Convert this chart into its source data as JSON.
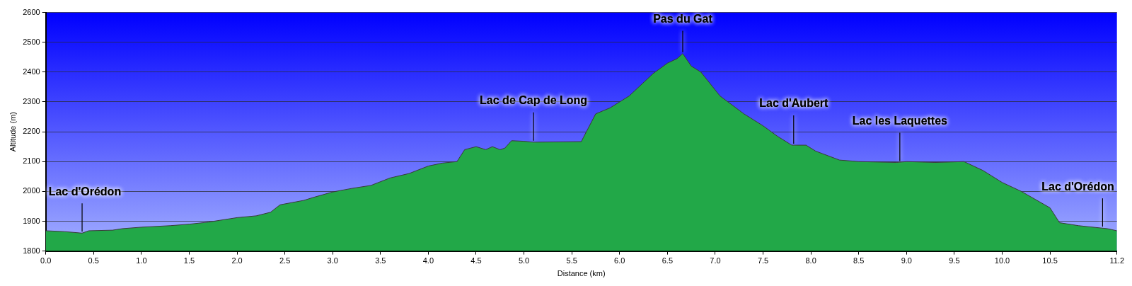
{
  "chart_data": {
    "type": "area",
    "xlabel": "Distance (km)",
    "ylabel": "Altitude (m)",
    "x": [
      0,
      0.2,
      0.38,
      0.45,
      0.7,
      0.8,
      1.0,
      1.3,
      1.5,
      1.7,
      2.0,
      2.2,
      2.35,
      2.45,
      2.7,
      2.8,
      3.0,
      3.2,
      3.4,
      3.6,
      3.8,
      4.0,
      4.15,
      4.3,
      4.38,
      4.5,
      4.6,
      4.67,
      4.75,
      4.8,
      4.87,
      5.0,
      5.1,
      5.6,
      5.62,
      5.75,
      5.9,
      6.1,
      6.2,
      6.35,
      6.5,
      6.6,
      6.66,
      6.75,
      6.85,
      7.05,
      7.3,
      7.5,
      7.65,
      7.8,
      7.95,
      8.05,
      8.3,
      8.5,
      8.9,
      9.0,
      9.3,
      9.6,
      9.8,
      10.0,
      10.2,
      10.5,
      10.6,
      10.8,
      11.1,
      11.2
    ],
    "series": [
      {
        "color": "#22a848",
        "values": [
          1868,
          1865,
          1860,
          1868,
          1870,
          1875,
          1880,
          1885,
          1890,
          1897,
          1912,
          1918,
          1930,
          1955,
          1970,
          1980,
          1998,
          2010,
          2020,
          2045,
          2060,
          2085,
          2095,
          2100,
          2140,
          2150,
          2140,
          2150,
          2140,
          2145,
          2170,
          2168,
          2165,
          2167,
          2180,
          2260,
          2280,
          2320,
          2350,
          2395,
          2430,
          2445,
          2462,
          2420,
          2400,
          2320,
          2260,
          2220,
          2185,
          2155,
          2155,
          2135,
          2105,
          2100,
          2097,
          2100,
          2097,
          2100,
          2070,
          2030,
          2000,
          1945,
          1895,
          1885,
          1875,
          1868
        ]
      }
    ],
    "xlim": [
      0,
      11.2
    ],
    "xticks": [
      {
        "value": 0,
        "label": "0.0"
      },
      0.5,
      {
        "value": 1,
        "label": "1.0"
      },
      1.5,
      {
        "value": 2,
        "label": "2.0"
      },
      2.5,
      {
        "value": 3,
        "label": "3.0"
      },
      3.5,
      {
        "value": 4,
        "label": "4.0"
      },
      4.5,
      {
        "value": 5,
        "label": "5.0"
      },
      5.5,
      {
        "value": 6,
        "label": "6.0"
      },
      6.5,
      {
        "value": 7,
        "label": "7.0"
      },
      7.5,
      {
        "value": 8,
        "label": "8.0"
      },
      8.5,
      {
        "value": 9,
        "label": "9.0"
      },
      9.5,
      {
        "value": 10,
        "label": "10.0"
      },
      10.5,
      11.2
    ],
    "ylim": [
      1800,
      2600
    ],
    "yticks": [
      1800,
      1900,
      2000,
      2100,
      2200,
      2300,
      2400,
      2500,
      2600
    ],
    "grid": "y",
    "legend": false,
    "annotations": [
      {
        "text": "Lac d'Orédon",
        "x": 0.38,
        "y": 1860
      },
      {
        "text": "Lac de Cap de Long",
        "x": 5.1,
        "y": 2165
      },
      {
        "text": "Pas du Gat",
        "x": 6.66,
        "y": 2462
      },
      {
        "text": "Lac d'Aubert",
        "x": 7.82,
        "y": 2155
      },
      {
        "text": "Lac les Laquettes",
        "x": 8.93,
        "y": 2097
      },
      {
        "text": "Lac d'Orédon",
        "x": 11.05,
        "y": 1877
      }
    ]
  }
}
